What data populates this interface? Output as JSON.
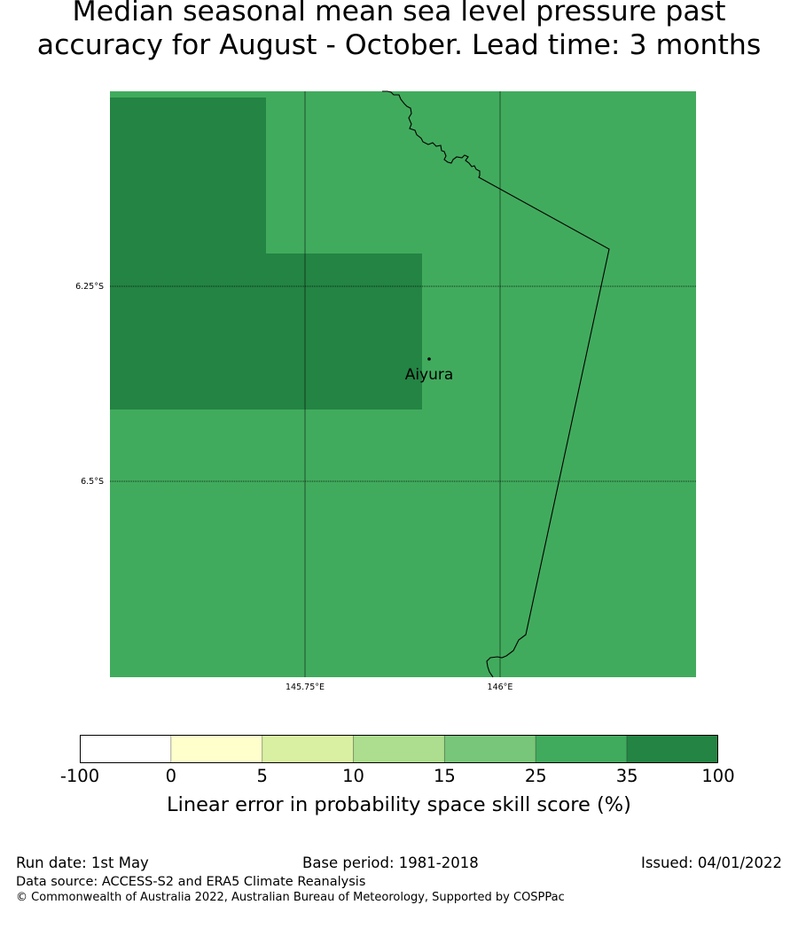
{
  "title_line1": "Median seasonal mean sea level pressure past",
  "title_line2": "accuracy for August - October. Lead time: 3 months",
  "map": {
    "lat_labels": [
      "6.25°S",
      "6.5°S"
    ],
    "lon_labels": [
      "145.75°E",
      "146°E"
    ],
    "place_label": "Aiyura",
    "colors": {
      "base": "#41ab5d",
      "dark": "#238443",
      "coast": "#000000"
    }
  },
  "colorbar": {
    "colors": [
      "#ffffff",
      "#ffffcc",
      "#d9f0a3",
      "#addd8e",
      "#78c679",
      "#41ab5d",
      "#238443"
    ],
    "ticks": [
      "-100",
      "0",
      "5",
      "10",
      "15",
      "25",
      "35",
      "100"
    ],
    "label": "Linear error in probability space skill score (%)"
  },
  "footer": {
    "run_date": "Run date: 1st May",
    "base_period": "Base period: 1981-2018",
    "issued": "Issued: 04/01/2022",
    "data_source": "Data source: ACCESS-S2 and ERA5 Climate Reanalysis",
    "copyright": "© Commonwealth of Australia 2022, Australian Bureau of Meteorology, Supported by COSPPac"
  }
}
